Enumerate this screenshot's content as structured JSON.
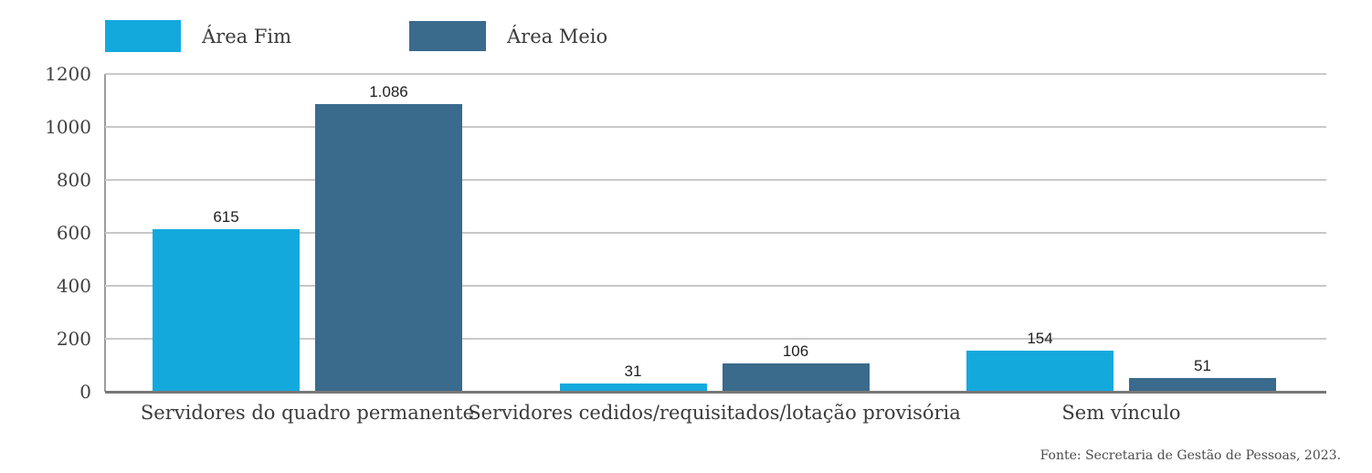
{
  "chart_data": {
    "type": "bar",
    "title": "",
    "categories": [
      "Servidores do quadro permanente",
      "Servidores cedidos/requisitados/lotação provisória",
      "Sem vínculo"
    ],
    "series": [
      {
        "name": "Área Fim",
        "color": "#14a9dd",
        "values": [
          615,
          31,
          154
        ],
        "value_labels": [
          "615",
          "31",
          "154"
        ]
      },
      {
        "name": "Área Meio",
        "color": "#3a6a8c",
        "values": [
          1086,
          106,
          51
        ],
        "value_labels": [
          "1.086",
          "106",
          "51"
        ]
      }
    ],
    "y_ticks": [
      0,
      200,
      400,
      600,
      800,
      1000,
      1200
    ],
    "ylim": [
      0,
      1200
    ],
    "grid": true,
    "legend_position": "top-left",
    "source_note": "Fonte: Secretaria de Gestão de Pessoas, 2023."
  }
}
